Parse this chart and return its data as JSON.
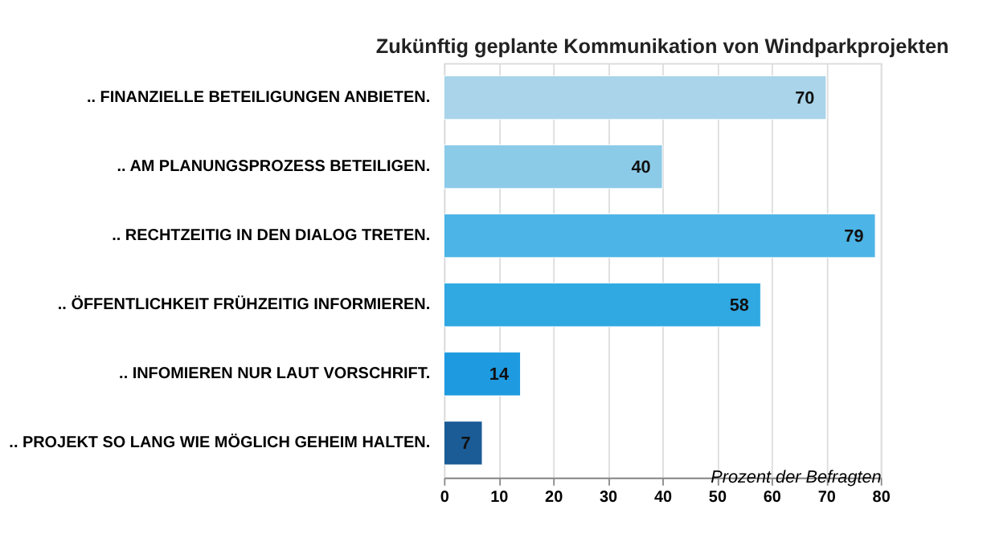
{
  "chart_data": {
    "type": "bar",
    "orientation": "horizontal",
    "title": "Zukünftig geplante Kommunikation von Windparkprojekten",
    "xlabel": "Prozent der Befragten",
    "categories": [
      ".. FINANZIELLE BETEILIGUNGEN ANBIETEN.",
      ".. AM PLANUNGSPROZESS BETEILIGEN.",
      ".. RECHTZEITIG IN DEN DIALOG TRETEN.",
      "..  ÖFFENTLICHKEIT FRÜHZEITIG INFORMIEREN.",
      ".. INFOMIEREN NUR LAUT VORSCHRIFT.",
      ".. PROJEKT SO LANG WIE MÖGLICH GEHEIM HALTEN."
    ],
    "values": [
      70,
      40,
      79,
      58,
      14,
      7
    ],
    "colors": [
      "#a9d4ea",
      "#8ccbe8",
      "#4cb4e6",
      "#30a8e2",
      "#1e9ae0",
      "#1b5c96"
    ],
    "xlim": [
      0,
      80
    ],
    "xticks": [
      0,
      10,
      20,
      30,
      40,
      50,
      60,
      70,
      80
    ],
    "grid": "x",
    "data_labels": true
  }
}
